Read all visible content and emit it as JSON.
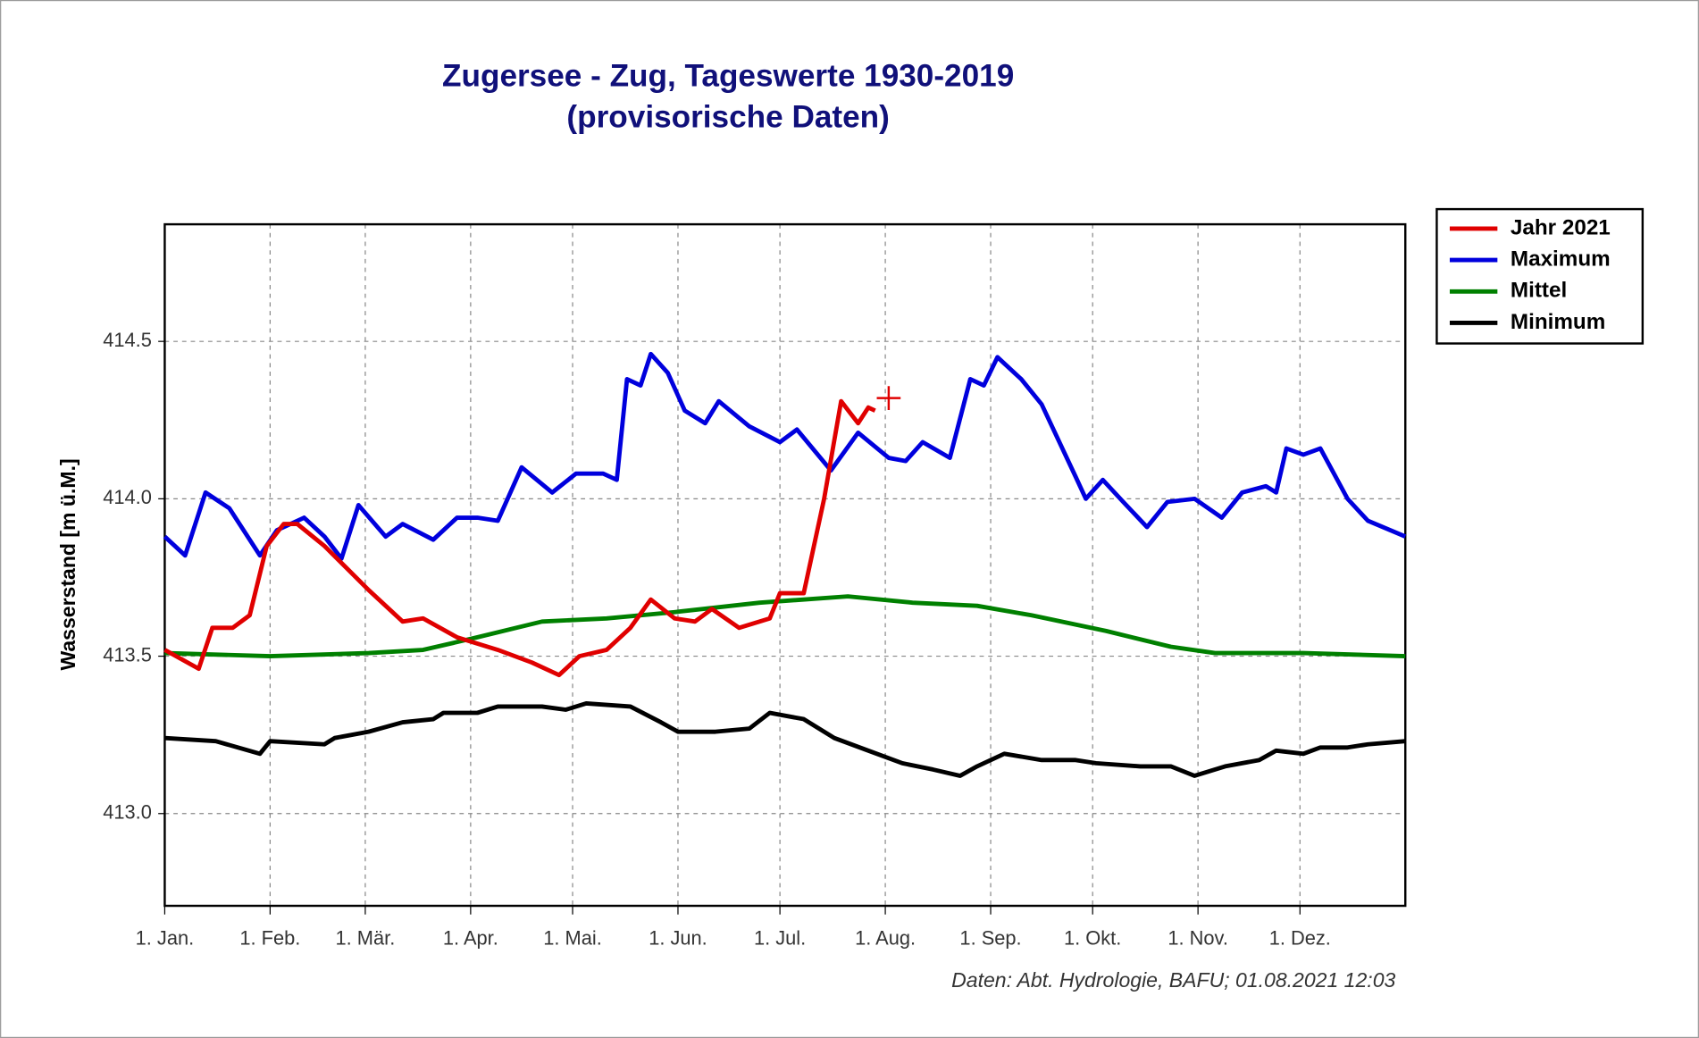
{
  "chart_data": {
    "type": "line",
    "title": "Zugersee - Zug, Tageswerte 1930-2019",
    "subtitle": "(provisorische Daten)",
    "y_label": "Wasserstand [m ü.M.]",
    "source": "Daten: Abt. Hydrologie, BAFU; 01.08.2021 12:03",
    "xlim": [
      0,
      365
    ],
    "ylim": [
      412.707,
      414.872
    ],
    "xticks": [
      {
        "value": 0,
        "label": "1. Jan."
      },
      {
        "value": 31,
        "label": "1. Feb."
      },
      {
        "value": 59,
        "label": "1. Mär."
      },
      {
        "value": 90,
        "label": "1. Apr."
      },
      {
        "value": 120,
        "label": "1. Mai."
      },
      {
        "value": 151,
        "label": "1. Jun."
      },
      {
        "value": 181,
        "label": "1. Jul."
      },
      {
        "value": 212,
        "label": "1. Aug."
      },
      {
        "value": 243,
        "label": "1. Sep."
      },
      {
        "value": 273,
        "label": "1. Okt."
      },
      {
        "value": 304,
        "label": "1. Nov."
      },
      {
        "value": 334,
        "label": "1. Dez."
      }
    ],
    "yticks": [
      {
        "value": 413,
        "label": "413.0"
      },
      413.5,
      {
        "value": 414,
        "label": "414.0"
      },
      414.5
    ],
    "grid": true,
    "legend": "top-right",
    "series": [
      {
        "name": "Jahr 2021",
        "color": "#e00000",
        "x": [
          0,
          10,
          14,
          20,
          25,
          30,
          35,
          39,
          47,
          60,
          70,
          76,
          86,
          98,
          108,
          116,
          122,
          130,
          137,
          143,
          150,
          156,
          161,
          169,
          178,
          181,
          188,
          194,
          199,
          204,
          207,
          209
        ],
        "values": [
          413.52,
          413.46,
          413.59,
          413.59,
          413.63,
          413.85,
          413.92,
          413.92,
          413.85,
          413.71,
          413.61,
          413.62,
          413.56,
          413.52,
          413.48,
          413.44,
          413.5,
          413.52,
          413.59,
          413.68,
          413.62,
          413.61,
          413.65,
          413.59,
          413.62,
          413.7,
          413.7,
          414.0,
          414.31,
          414.24,
          414.29,
          414.28
        ]
      },
      {
        "name": "Maximum",
        "color": "#0000dd",
        "x": [
          0,
          6,
          12,
          19,
          28,
          33,
          41,
          47,
          52,
          57,
          65,
          70,
          79,
          86,
          92,
          98,
          105,
          114,
          121,
          129,
          133,
          136,
          140,
          143,
          148,
          153,
          159,
          163,
          172,
          181,
          186,
          196,
          204,
          213,
          218,
          223,
          231,
          237,
          241,
          245,
          252,
          258,
          268,
          271,
          276,
          282,
          289,
          295,
          303,
          311,
          317,
          324,
          327,
          330,
          335,
          340,
          348,
          354,
          365
        ],
        "values": [
          413.88,
          413.82,
          414.02,
          413.97,
          413.82,
          413.9,
          413.94,
          413.88,
          413.81,
          413.98,
          413.88,
          413.92,
          413.87,
          413.94,
          413.94,
          413.93,
          414.1,
          414.02,
          414.08,
          414.08,
          414.06,
          414.38,
          414.36,
          414.46,
          414.4,
          414.28,
          414.24,
          414.31,
          414.23,
          414.18,
          414.22,
          414.09,
          414.21,
          414.13,
          414.12,
          414.18,
          414.13,
          414.38,
          414.36,
          414.45,
          414.38,
          414.3,
          414.07,
          414.0,
          414.06,
          413.99,
          413.91,
          413.99,
          414.0,
          413.94,
          414.02,
          414.04,
          414.02,
          414.16,
          414.14,
          414.16,
          414.0,
          413.93,
          413.88
        ]
      },
      {
        "name": "Mittel",
        "color": "#008000",
        "x": [
          0,
          31,
          60,
          76,
          92,
          111,
          130,
          150,
          175,
          201,
          220,
          239,
          255,
          277,
          296,
          309,
          335,
          365
        ],
        "values": [
          413.51,
          413.5,
          413.51,
          413.52,
          413.56,
          413.61,
          413.62,
          413.64,
          413.67,
          413.69,
          413.67,
          413.66,
          413.63,
          413.58,
          413.53,
          413.51,
          413.51,
          413.5
        ]
      },
      {
        "name": "Minimum",
        "color": "#000000",
        "x": [
          0,
          15,
          28,
          31,
          47,
          50,
          60,
          70,
          79,
          82,
          92,
          98,
          111,
          118,
          124,
          137,
          146,
          151,
          162,
          172,
          178,
          188,
          197,
          207,
          217,
          226,
          234,
          239,
          247,
          258,
          268,
          274,
          287,
          296,
          303,
          312,
          322,
          327,
          335,
          340,
          348,
          354,
          365
        ],
        "values": [
          413.24,
          413.23,
          413.19,
          413.23,
          413.22,
          413.24,
          413.26,
          413.29,
          413.3,
          413.32,
          413.32,
          413.34,
          413.34,
          413.33,
          413.35,
          413.34,
          413.29,
          413.26,
          413.26,
          413.27,
          413.32,
          413.3,
          413.24,
          413.2,
          413.16,
          413.14,
          413.12,
          413.15,
          413.19,
          413.17,
          413.17,
          413.16,
          413.15,
          413.15,
          413.12,
          413.15,
          413.17,
          413.2,
          413.19,
          413.21,
          413.21,
          413.22,
          413.23
        ]
      }
    ],
    "marker": {
      "x": 213,
      "y": 414.32,
      "color": "#e00000"
    }
  }
}
